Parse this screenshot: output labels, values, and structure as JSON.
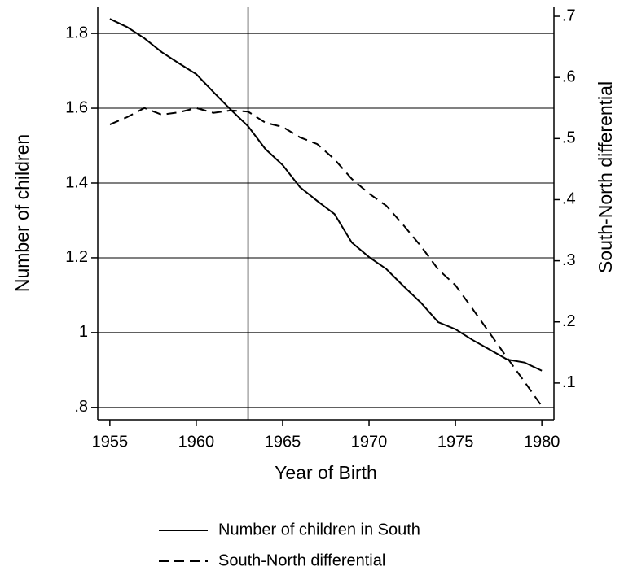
{
  "chart_data": {
    "type": "line",
    "x": [
      1955,
      1956,
      1957,
      1958,
      1959,
      1960,
      1961,
      1962,
      1963,
      1964,
      1965,
      1966,
      1967,
      1968,
      1969,
      1970,
      1971,
      1972,
      1973,
      1974,
      1975,
      1976,
      1977,
      1978,
      1979,
      1980
    ],
    "xlabel": "Year of Birth",
    "ylabel": "Number of children",
    "y2label": "South-North differential",
    "xlim": [
      1954.3,
      1980.7
    ],
    "xticks": [
      1955,
      1960,
      1965,
      1970,
      1975,
      1980
    ],
    "ylim": [
      0.767,
      1.872
    ],
    "yticks": [
      {
        "value": 0.8,
        "label": ".8"
      },
      1,
      1.2,
      1.4,
      1.6,
      1.8
    ],
    "y2lim": [
      0.04,
      0.716
    ],
    "y2ticks": [
      {
        "value": 0.1,
        "label": ".1"
      },
      {
        "value": 0.2,
        "label": ".2"
      },
      {
        "value": 0.3,
        "label": ".3"
      },
      {
        "value": 0.4,
        "label": ".4"
      },
      {
        "value": 0.5,
        "label": ".5"
      },
      {
        "value": 0.6,
        "label": ".6"
      },
      {
        "value": 0.7,
        "label": ".7"
      }
    ],
    "grid": true,
    "vline": 1963,
    "legend": "bottom",
    "series": [
      {
        "name": "Number of children in South",
        "color": "#000000",
        "line_style": "solid",
        "values": [
          1.839,
          1.817,
          1.787,
          1.75,
          1.72,
          1.691,
          1.643,
          1.596,
          1.552,
          1.491,
          1.448,
          1.389,
          1.352,
          1.317,
          1.241,
          1.202,
          1.17,
          1.124,
          1.08,
          1.028,
          1.009,
          0.98,
          0.954,
          0.928,
          0.92,
          0.898
        ]
      },
      {
        "name": "South-North differential",
        "color": "#000000",
        "line_style": "dashed",
        "axis": "y2",
        "values": [
          0.523,
          0.535,
          0.55,
          0.539,
          0.543,
          0.55,
          0.542,
          0.546,
          0.544,
          0.526,
          0.519,
          0.502,
          0.491,
          0.466,
          0.434,
          0.41,
          0.39,
          0.358,
          0.324,
          0.286,
          0.26,
          0.221,
          0.181,
          0.141,
          0.102,
          0.062
        ]
      }
    ]
  }
}
